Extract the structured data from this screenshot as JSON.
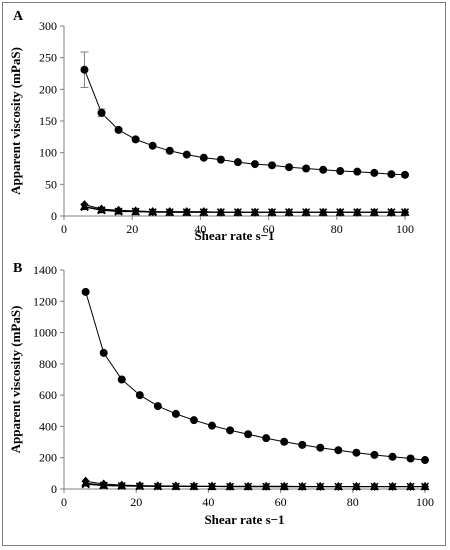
{
  "panel_labels": [
    "A",
    "B"
  ],
  "chart_data": [
    {
      "panel": "A",
      "type": "line",
      "xlabel": "Shear rate s−1",
      "ylabel": "Apparent viscosity (mPaS)",
      "xlim": [
        0,
        100
      ],
      "ylim": [
        0,
        300
      ],
      "xticks": [
        0,
        20,
        40,
        60,
        80,
        100
      ],
      "yticks": [
        0,
        50,
        100,
        150,
        200,
        250,
        300
      ],
      "grid": false,
      "x": [
        6,
        11,
        16,
        21,
        26,
        31,
        36,
        41,
        46,
        51,
        56,
        61,
        66,
        71,
        76,
        81,
        86,
        91,
        96,
        100
      ],
      "series": [
        {
          "marker": "circle",
          "values": [
            231,
            163,
            136,
            121,
            111,
            103,
            97,
            92,
            89,
            85,
            82,
            80,
            77,
            75,
            73,
            71,
            70,
            68,
            66,
            65
          ],
          "error": [
            28,
            6,
            0,
            0,
            0,
            0,
            0,
            0,
            0,
            0,
            0,
            0,
            0,
            0,
            0,
            0,
            0,
            0,
            0,
            0
          ]
        },
        {
          "marker": "diamond",
          "values": [
            18,
            11,
            9,
            8,
            7,
            7,
            7,
            7,
            6,
            6,
            6,
            6,
            6,
            6,
            6,
            6,
            6,
            6,
            6,
            6
          ]
        },
        {
          "marker": "triangle",
          "values": [
            15,
            10,
            8,
            7,
            7,
            6,
            6,
            6,
            6,
            6,
            6,
            6,
            6,
            6,
            6,
            6,
            6,
            6,
            6,
            6
          ]
        },
        {
          "marker": "cross",
          "values": [
            14,
            9,
            7,
            7,
            6,
            6,
            6,
            6,
            6,
            6,
            6,
            6,
            6,
            6,
            6,
            6,
            6,
            6,
            6,
            6
          ]
        }
      ]
    },
    {
      "panel": "B",
      "type": "line",
      "xlabel": "Shear rate s−1",
      "ylabel": "Apparent viscosity (mPaS)",
      "xlim": [
        0,
        100
      ],
      "ylim": [
        0,
        1400
      ],
      "xticks": [
        0,
        20,
        40,
        60,
        80,
        100
      ],
      "yticks": [
        0,
        200,
        400,
        600,
        800,
        1000,
        1200,
        1400
      ],
      "grid": false,
      "x": [
        6,
        11,
        16,
        21,
        26,
        31,
        36,
        41,
        46,
        51,
        56,
        61,
        66,
        71,
        76,
        81,
        86,
        91,
        96,
        100
      ],
      "series": [
        {
          "marker": "circle",
          "values": [
            1260,
            870,
            700,
            600,
            530,
            480,
            440,
            405,
            375,
            350,
            325,
            302,
            282,
            264,
            248,
            232,
            218,
            206,
            195,
            185
          ]
        },
        {
          "marker": "diamond",
          "values": [
            50,
            32,
            25,
            22,
            20,
            19,
            18,
            18,
            17,
            17,
            17,
            17,
            16,
            16,
            16,
            16,
            16,
            16,
            16,
            16
          ]
        },
        {
          "marker": "triangle",
          "values": [
            38,
            25,
            21,
            19,
            18,
            17,
            17,
            16,
            16,
            16,
            16,
            16,
            16,
            16,
            16,
            16,
            16,
            16,
            16,
            16
          ]
        },
        {
          "marker": "cross",
          "values": [
            30,
            22,
            19,
            17,
            16,
            16,
            16,
            16,
            15,
            15,
            15,
            15,
            15,
            15,
            15,
            15,
            15,
            15,
            15,
            15
          ]
        }
      ]
    }
  ]
}
